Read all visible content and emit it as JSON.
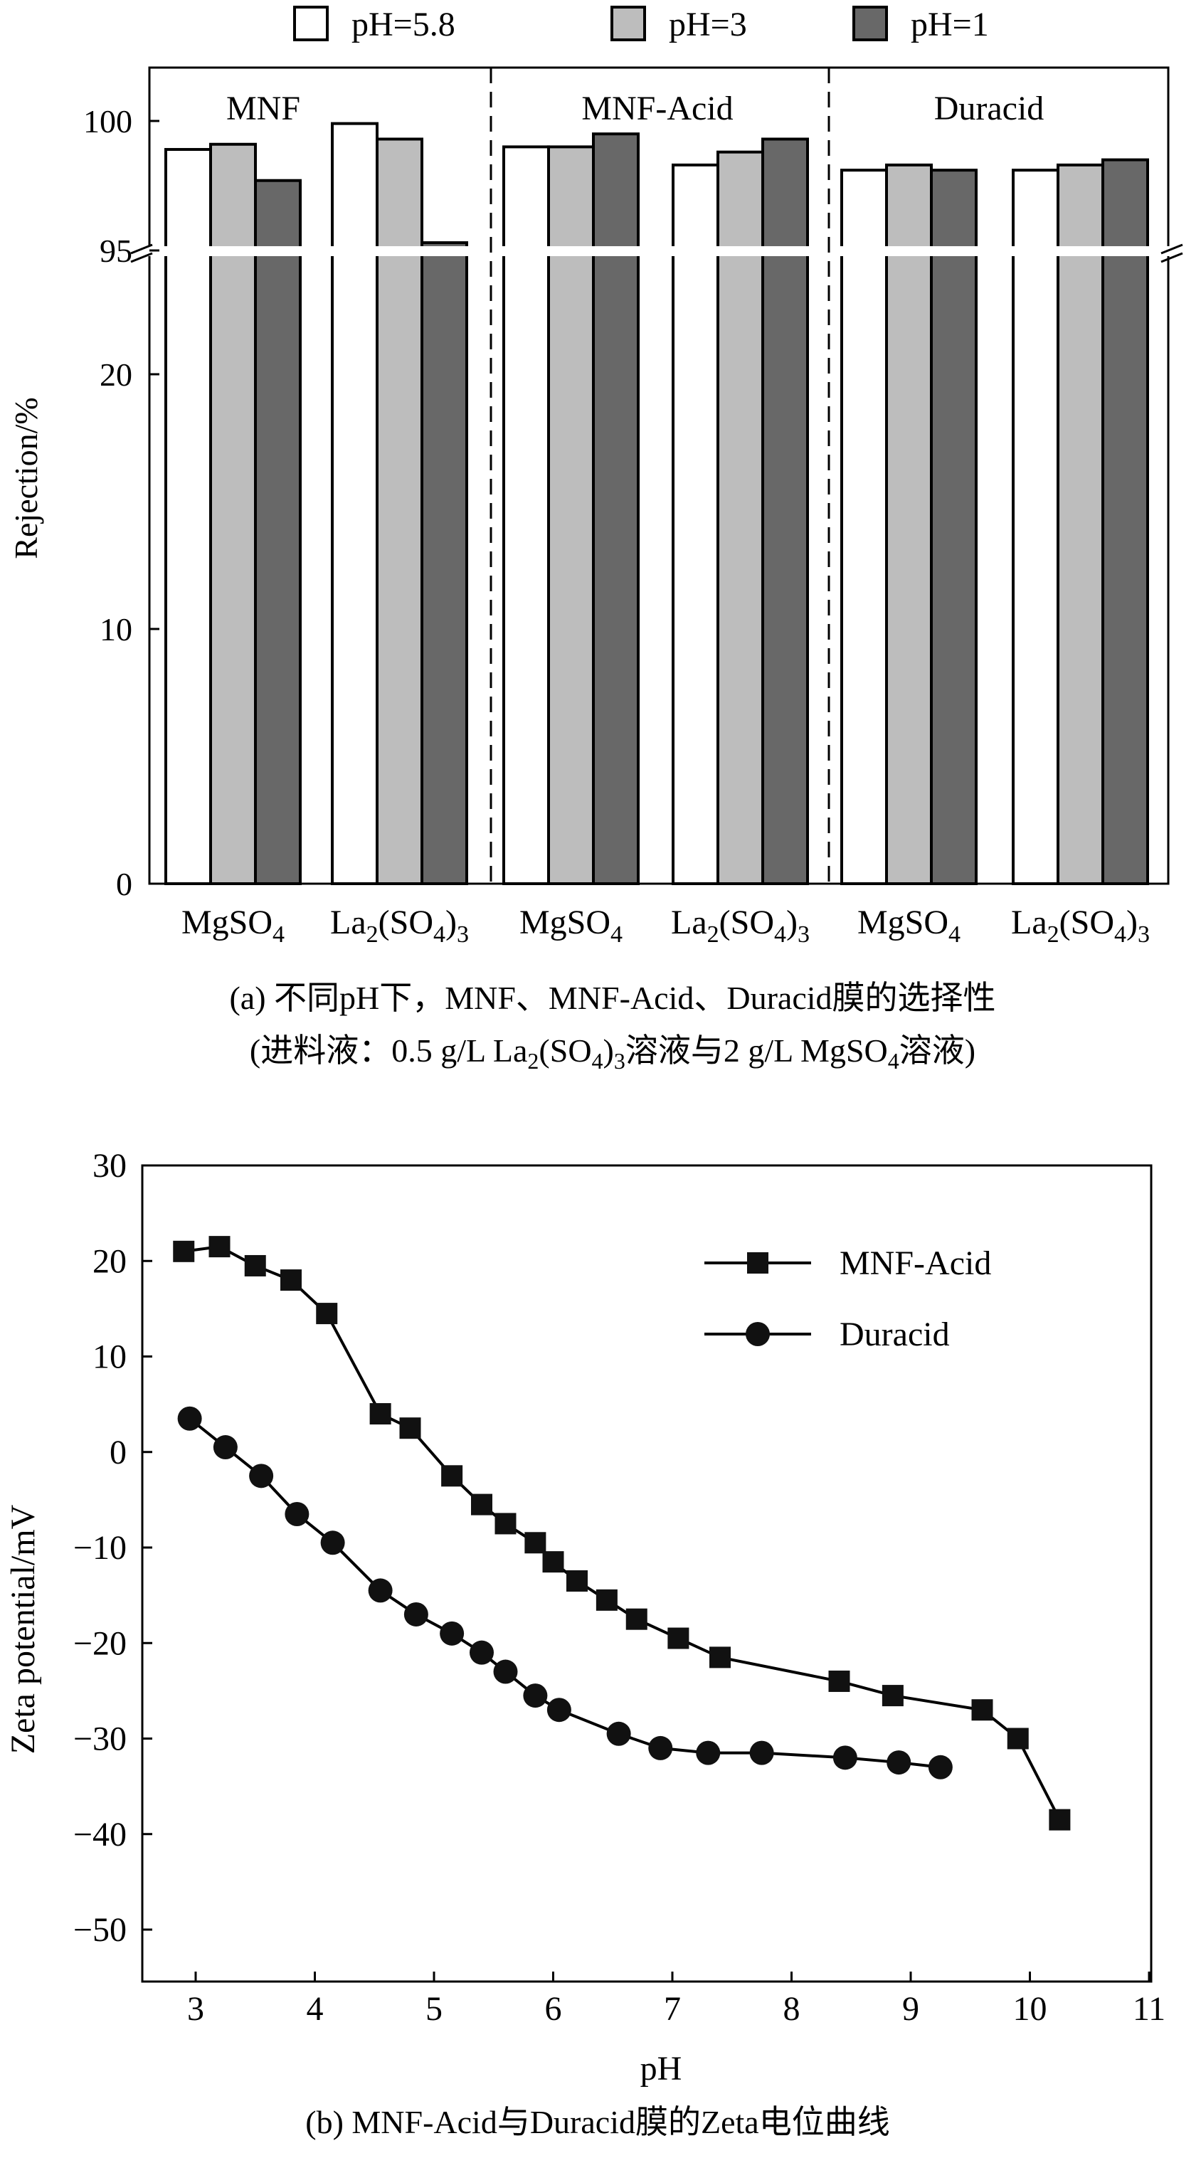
{
  "chart_data": [
    {
      "type": "bar",
      "panel_caption": "(a) 不同pH下，MNF、MNF-Acid、Duracid膜的选择性",
      "panel_subcaption": "(进料液：0.5 g/L La2(SO4)3溶液与2 g/L MgSO4溶液)",
      "subcaption_parts": {
        "p1": "(进料液：0.5 g/L La",
        "s1": "2",
        "p2": "(SO",
        "s2": "4",
        "p3": ")",
        "s3": "3",
        "p4": "溶液与2 g/L MgSO",
        "s4": "4",
        "p5": "溶液)"
      },
      "ylabel": "Rejection/%",
      "y_axis": {
        "broken": true,
        "lower_range": [
          0,
          30
        ],
        "upper_range": [
          95,
          101.5
        ],
        "ticks_lower": [
          0,
          10,
          20
        ],
        "ticks_upper": [
          95,
          100
        ],
        "tick_labels": {
          "0": "0",
          "10": "10",
          "20": "20",
          "95": "95",
          "100": "100"
        }
      },
      "legend": {
        "placement": "top",
        "entries": [
          {
            "label": "pH=5.8",
            "color": "#ffffff"
          },
          {
            "label": "pH=3",
            "color": "#bdbdbd"
          },
          {
            "label": "pH=1",
            "color": "#686868"
          }
        ]
      },
      "groups": [
        {
          "name": "MNF",
          "categories": [
            {
              "label": "MgSO4",
              "values": [
                98.9,
                99.1,
                97.7
              ]
            },
            {
              "label": "La2(SO4)3",
              "values": [
                99.9,
                99.3,
                95.3
              ]
            }
          ]
        },
        {
          "name": "MNF-Acid",
          "categories": [
            {
              "label": "MgSO4",
              "values": [
                99.0,
                99.0,
                99.5
              ]
            },
            {
              "label": "La2(SO4)3",
              "values": [
                98.3,
                98.8,
                99.3
              ]
            }
          ]
        },
        {
          "name": "Duracid",
          "categories": [
            {
              "label": "MgSO4",
              "values": [
                98.1,
                98.3,
                98.1
              ]
            },
            {
              "label": "La2(SO4)3",
              "values": [
                98.1,
                98.3,
                98.5
              ]
            }
          ]
        }
      ],
      "category_label_parts": {
        "MgSO4": {
          "main": "MgSO",
          "sub": "4",
          "tail": "",
          "sub2": ""
        },
        "La2(SO4)3": {
          "main": "La",
          "sub": "2",
          "tail": "(SO",
          "sub2": "4",
          "tail2": ")",
          "sub3": "3"
        }
      }
    },
    {
      "type": "line",
      "panel_caption": "(b) MNF-Acid与Duracid膜的Zeta电位曲线",
      "xlabel": "pH",
      "ylabel": "Zeta potential/mV",
      "xlim": [
        2.3,
        11
      ],
      "ylim": [
        -55,
        30
      ],
      "xticks": [
        3,
        4,
        5,
        6,
        7,
        8,
        9,
        10,
        11
      ],
      "yticks": [
        -50,
        -40,
        -30,
        -20,
        -10,
        0,
        10,
        20,
        30
      ],
      "ytick_labels": [
        "−50",
        "−40",
        "−30",
        "−20",
        "−10",
        "0",
        "10",
        "20",
        "30"
      ],
      "legend": {
        "placement": "top-right"
      },
      "series": [
        {
          "name": "MNF-Acid",
          "marker": "square",
          "x": [
            2.9,
            3.2,
            3.5,
            3.8,
            4.1,
            4.55,
            4.8,
            5.15,
            5.4,
            5.6,
            5.85,
            6.0,
            6.2,
            6.45,
            6.7,
            7.05,
            7.4,
            8.4,
            8.85,
            9.6,
            9.9,
            10.25
          ],
          "y": [
            21,
            21.5,
            19.5,
            18,
            14.5,
            4,
            2.5,
            -2.5,
            -5.5,
            -7.5,
            -9.5,
            -11.5,
            -13.5,
            -15.5,
            -17.5,
            -19.5,
            -21.5,
            -24,
            -25.5,
            -27,
            -30,
            -38.5
          ]
        },
        {
          "name": "Duracid",
          "marker": "circle",
          "x": [
            2.95,
            3.25,
            3.55,
            3.85,
            4.15,
            4.55,
            4.85,
            5.15,
            5.4,
            5.6,
            5.85,
            6.05,
            6.55,
            6.9,
            7.3,
            7.75,
            8.45,
            8.9,
            9.25
          ],
          "y": [
            3.5,
            0.5,
            -2.5,
            -6.5,
            -9.5,
            -14.5,
            -17,
            -19,
            -21,
            -23,
            -25.5,
            -27,
            -29.5,
            -31,
            -31.5,
            -31.5,
            -32,
            -32.5,
            -33
          ]
        }
      ]
    }
  ]
}
